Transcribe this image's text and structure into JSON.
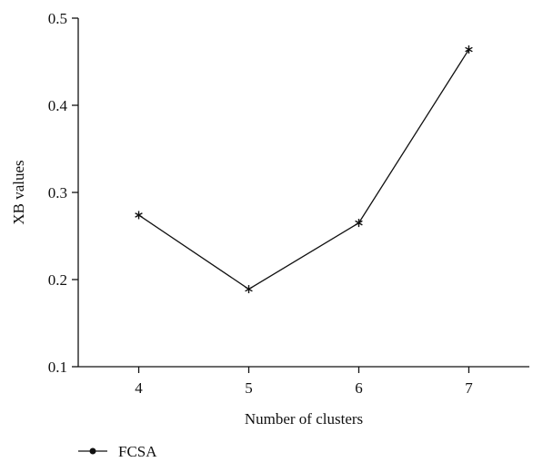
{
  "chart_data": {
    "type": "line",
    "title": "",
    "xlabel": "Number of clusters",
    "ylabel": "XB values",
    "x": [
      4,
      5,
      6,
      7
    ],
    "xlim": [
      3.45,
      7.55
    ],
    "ylim": [
      0.1,
      0.5
    ],
    "x_ticks": [
      "4",
      "5",
      "6",
      "7"
    ],
    "y_ticks": [
      "0.1",
      "0.2",
      "0.3",
      "0.4",
      "0.5"
    ],
    "grid": false,
    "legend_position": "bottom-left",
    "series": [
      {
        "name": "FCSA",
        "values": [
          0.274,
          0.189,
          0.265,
          0.464
        ],
        "color": "#111111",
        "marker": "asterisk"
      }
    ]
  }
}
